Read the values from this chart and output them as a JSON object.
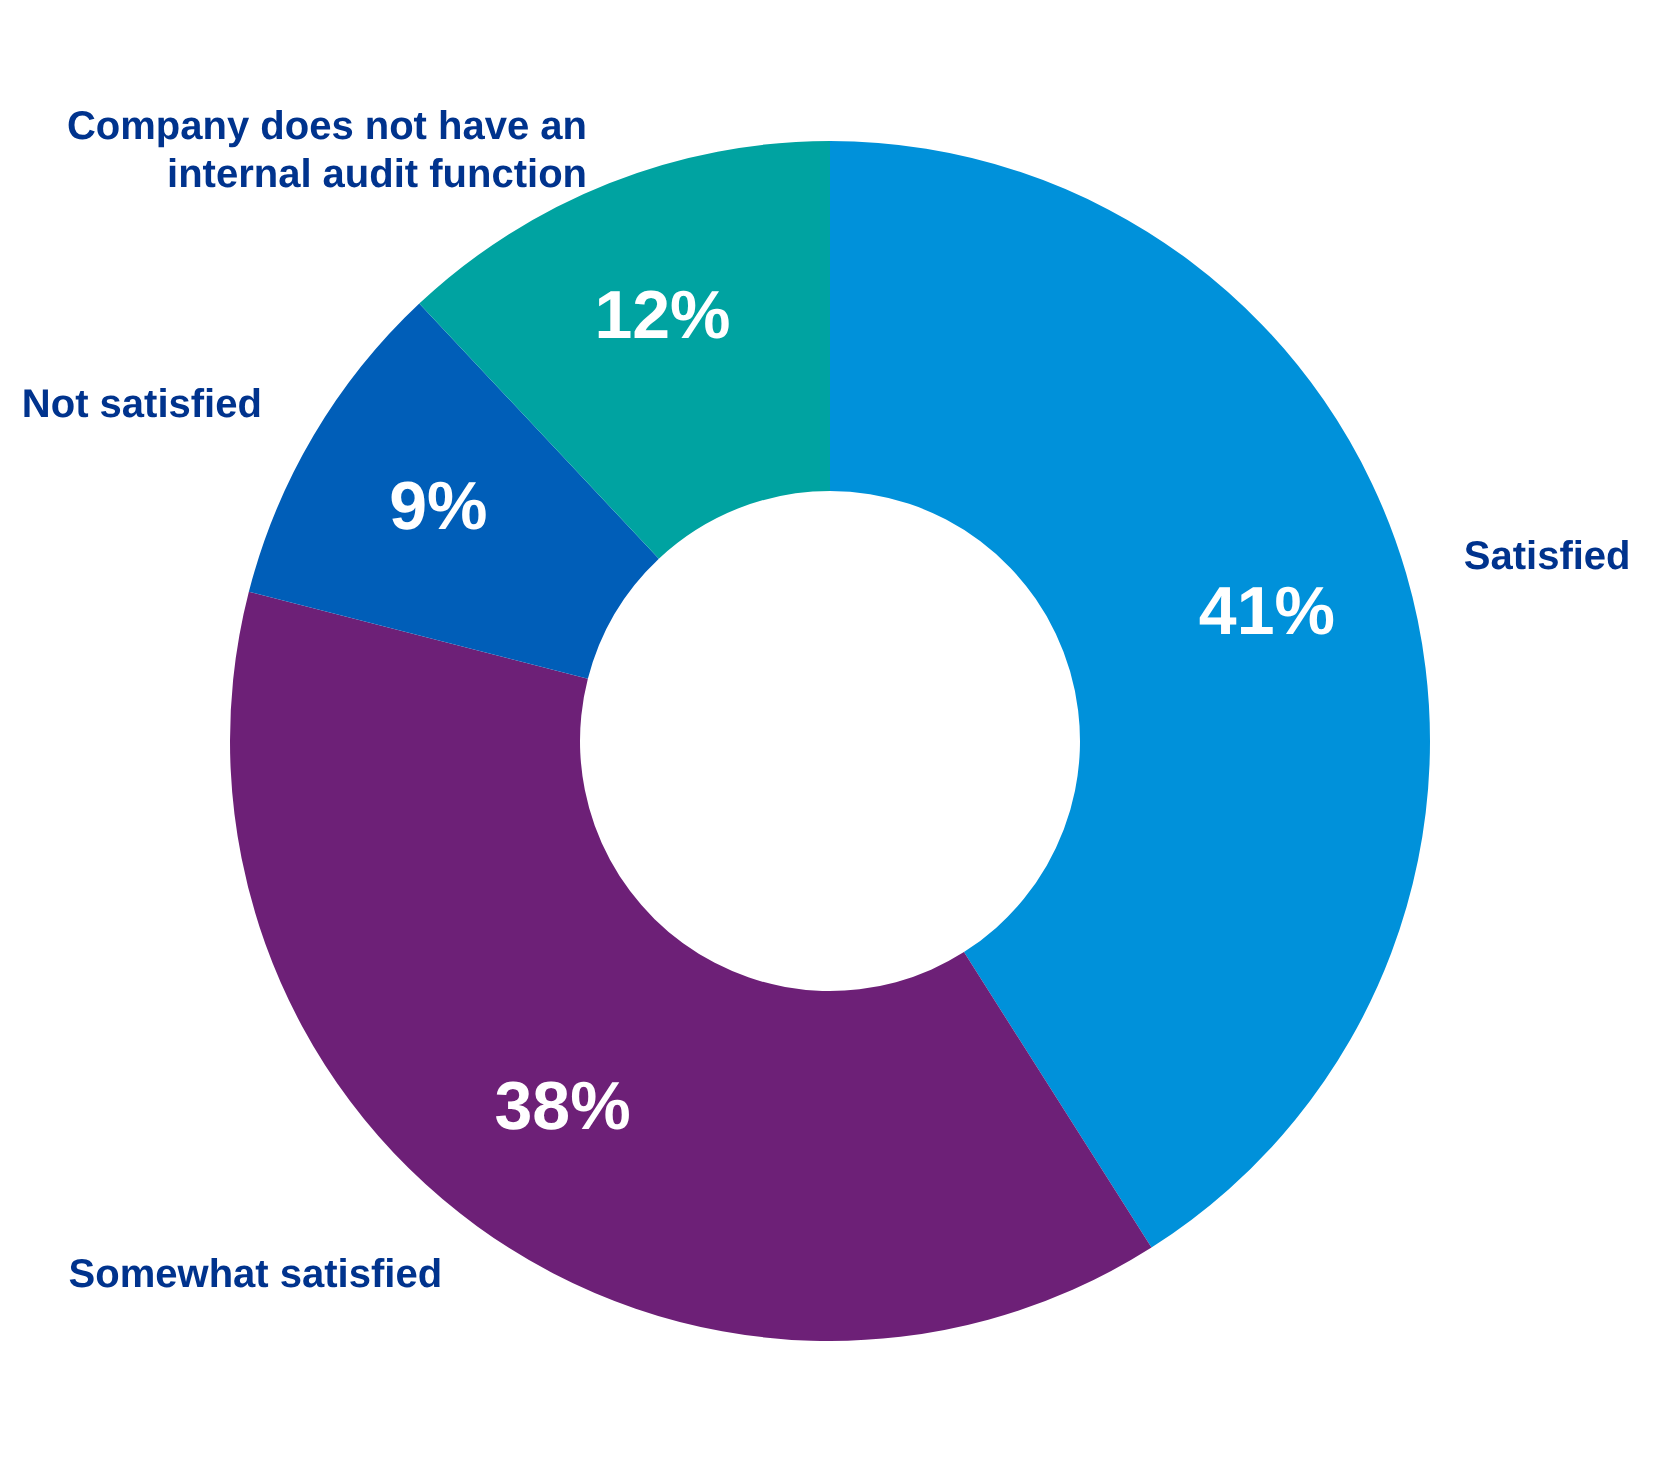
{
  "chart_data": {
    "type": "donut",
    "categories": [
      "Satisfied",
      "Somewhat satisfied",
      "Not satisfied",
      "Company does not have an internal audit function"
    ],
    "values": [
      41,
      38,
      9,
      12
    ],
    "colors": [
      "#0091da",
      "#6d2077",
      "#005eb8",
      "#00a3a1"
    ],
    "value_labels": [
      "41%",
      "38%",
      "9%",
      "12%"
    ]
  }
}
